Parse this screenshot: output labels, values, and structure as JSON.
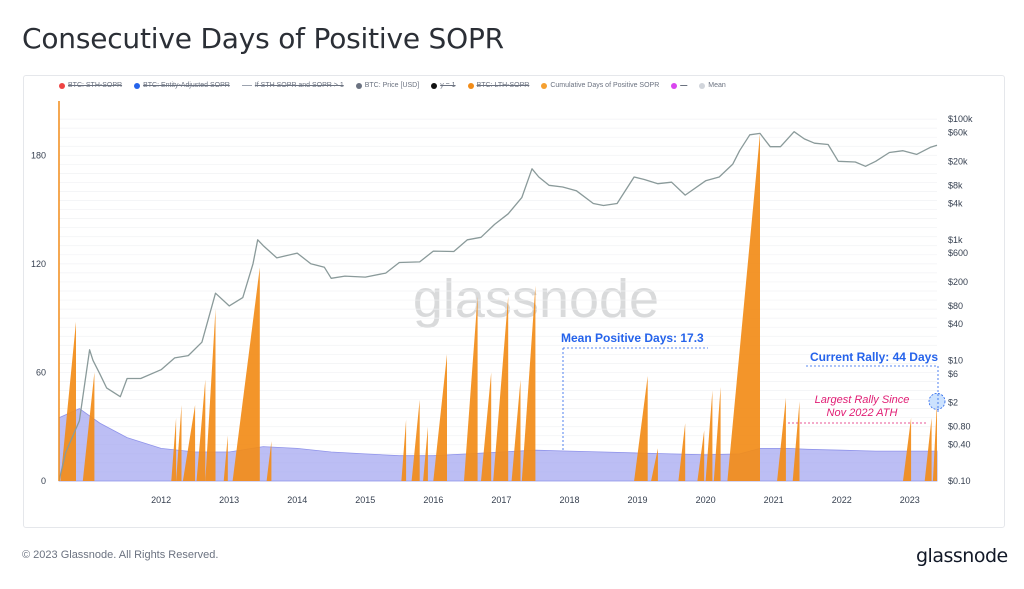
{
  "page": {
    "title": "Consecutive Days of Positive SOPR",
    "copyright": "© 2023 Glassnode. All Rights Reserved.",
    "logo": "glassnode",
    "watermark": "glassnode"
  },
  "legend": [
    {
      "label": "BTC: STH-SOPR",
      "color": "#ef4444",
      "active": false,
      "kind": "dot"
    },
    {
      "label": "BTC: Entity-Adjusted SOPR",
      "color": "#2563eb",
      "active": false,
      "kind": "dot"
    },
    {
      "label": "If STH SOPR and SOPR > 1",
      "color": "#9ca3af",
      "active": false,
      "kind": "line"
    },
    {
      "label": "BTC: Price [USD]",
      "color": "#6b7280",
      "active": true,
      "kind": "dot"
    },
    {
      "label": "y = 1",
      "color": "#111111",
      "active": false,
      "kind": "dot"
    },
    {
      "label": "BTC: LTH-SOPR",
      "color": "#f28c18",
      "active": false,
      "kind": "dot"
    },
    {
      "label": "Cumulative Days of Positive SOPR",
      "color": "#f5a030",
      "active": true,
      "kind": "dot"
    },
    {
      "label": "—",
      "color": "#d946ef",
      "active": false,
      "kind": "dot"
    },
    {
      "label": "Mean",
      "color": "#d1d5db",
      "active": true,
      "kind": "dot"
    }
  ],
  "annotations": {
    "mean": "Mean Positive Days: 17.3",
    "current": "Current Rally: 44 Days",
    "largest_line1": "Largest Rally Since",
    "largest_line2": "Nov 2022 ATH"
  },
  "colors": {
    "orange": "#f28c18",
    "mean_fill": "#a5a8f0",
    "price": "#8a9a9a",
    "annotation_blue": "#2563eb",
    "annotation_pink": "#e11d74"
  },
  "chart_data": {
    "type": "area",
    "title": "Consecutive Days of Positive SOPR",
    "x_range": [
      2011.0,
      2023.9
    ],
    "x_ticks": [
      "2012",
      "2013",
      "2014",
      "2015",
      "2016",
      "2017",
      "2018",
      "2019",
      "2020",
      "2021",
      "2022",
      "2023"
    ],
    "y_left": {
      "range": [
        0,
        210
      ],
      "ticks": [
        "0",
        "60",
        "120",
        "180"
      ]
    },
    "y_right": {
      "scale": "log",
      "range": [
        0.1,
        200000
      ],
      "ticks": [
        {
          "value": 100000,
          "label": "$100k"
        },
        {
          "value": 60000,
          "label": "$60k"
        },
        {
          "value": 20000,
          "label": "$20k"
        },
        {
          "value": 8000,
          "label": "$8k"
        },
        {
          "value": 4000,
          "label": "$4k"
        },
        {
          "value": 1000,
          "label": "$1k"
        },
        {
          "value": 600,
          "label": "$600"
        },
        {
          "value": 200,
          "label": "$200"
        },
        {
          "value": 80,
          "label": "$80"
        },
        {
          "value": 40,
          "label": "$40"
        },
        {
          "value": 10,
          "label": "$10"
        },
        {
          "value": 6,
          "label": "$6"
        },
        {
          "value": 2,
          "label": "$2"
        },
        {
          "value": 0.8,
          "label": "$0.80"
        },
        {
          "value": 0.4,
          "label": "$0.40"
        },
        {
          "value": 0.1,
          "label": "$0.10"
        }
      ]
    },
    "series": [
      {
        "name": "Cumulative Days of Positive SOPR",
        "kind": "spikes",
        "runs": [
          [
            2011.02,
            2011.25,
            88
          ],
          [
            2011.35,
            2011.52,
            60
          ],
          [
            2012.65,
            2012.72,
            35
          ],
          [
            2012.72,
            2012.8,
            42
          ],
          [
            2012.82,
            2013.0,
            42
          ],
          [
            2013.02,
            2013.15,
            56
          ],
          [
            2013.15,
            2013.3,
            95
          ],
          [
            2013.42,
            2013.48,
            25
          ],
          [
            2013.55,
            2013.95,
            118
          ],
          [
            2014.05,
            2014.12,
            22
          ],
          [
            2016.03,
            2016.1,
            34
          ],
          [
            2016.18,
            2016.3,
            45
          ],
          [
            2016.35,
            2016.42,
            30
          ],
          [
            2016.5,
            2016.7,
            70
          ],
          [
            2016.95,
            2017.15,
            102
          ],
          [
            2017.2,
            2017.35,
            60
          ],
          [
            2017.38,
            2017.6,
            102
          ],
          [
            2017.65,
            2017.78,
            56
          ],
          [
            2017.8,
            2018.0,
            108
          ],
          [
            2019.45,
            2019.65,
            58
          ],
          [
            2019.7,
            2019.8,
            18
          ],
          [
            2020.1,
            2020.2,
            32
          ],
          [
            2020.38,
            2020.48,
            28
          ],
          [
            2020.5,
            2020.6,
            50
          ],
          [
            2020.62,
            2020.72,
            52
          ],
          [
            2020.82,
            2021.3,
            192
          ],
          [
            2021.55,
            2021.68,
            46
          ],
          [
            2021.78,
            2021.88,
            44
          ],
          [
            2023.4,
            2023.52,
            35
          ],
          [
            2023.72,
            2023.82,
            35
          ],
          [
            2023.84,
            2023.9,
            44
          ]
        ]
      },
      {
        "name": "Mean",
        "points": [
          [
            2011.0,
            35
          ],
          [
            2011.3,
            40
          ],
          [
            2011.6,
            32
          ],
          [
            2012.0,
            24
          ],
          [
            2012.5,
            18
          ],
          [
            2013.0,
            16
          ],
          [
            2013.5,
            16
          ],
          [
            2014.0,
            19
          ],
          [
            2014.5,
            18
          ],
          [
            2015.0,
            16
          ],
          [
            2015.5,
            15
          ],
          [
            2016.0,
            14
          ],
          [
            2016.5,
            14
          ],
          [
            2017.0,
            15
          ],
          [
            2017.5,
            16
          ],
          [
            2018.0,
            17
          ],
          [
            2018.5,
            16.5
          ],
          [
            2019.0,
            16
          ],
          [
            2019.5,
            15.5
          ],
          [
            2020.0,
            15
          ],
          [
            2020.5,
            14.5
          ],
          [
            2021.0,
            15
          ],
          [
            2021.3,
            18
          ],
          [
            2021.7,
            18
          ],
          [
            2022.0,
            17.5
          ],
          [
            2022.5,
            17
          ],
          [
            2023.0,
            16.5
          ],
          [
            2023.5,
            16.5
          ],
          [
            2023.9,
            16.5
          ]
        ]
      },
      {
        "name": "BTC: Price [USD]",
        "points": [
          [
            2010.95,
            0.1
          ],
          [
            2011.1,
            0.3
          ],
          [
            2011.3,
            1.0
          ],
          [
            2011.45,
            15
          ],
          [
            2011.5,
            10
          ],
          [
            2011.6,
            6
          ],
          [
            2011.7,
            3.5
          ],
          [
            2011.9,
            2.5
          ],
          [
            2012.0,
            5
          ],
          [
            2012.2,
            5
          ],
          [
            2012.5,
            7
          ],
          [
            2012.7,
            11
          ],
          [
            2012.9,
            12
          ],
          [
            2013.1,
            20
          ],
          [
            2013.3,
            130
          ],
          [
            2013.5,
            80
          ],
          [
            2013.7,
            110
          ],
          [
            2013.85,
            400
          ],
          [
            2013.92,
            1000
          ],
          [
            2014.0,
            800
          ],
          [
            2014.2,
            500
          ],
          [
            2014.5,
            600
          ],
          [
            2014.7,
            400
          ],
          [
            2014.9,
            350
          ],
          [
            2015.0,
            230
          ],
          [
            2015.2,
            250
          ],
          [
            2015.5,
            240
          ],
          [
            2015.8,
            280
          ],
          [
            2016.0,
            420
          ],
          [
            2016.3,
            430
          ],
          [
            2016.5,
            650
          ],
          [
            2016.8,
            640
          ],
          [
            2017.0,
            1000
          ],
          [
            2017.2,
            1100
          ],
          [
            2017.4,
            1800
          ],
          [
            2017.6,
            2700
          ],
          [
            2017.8,
            5000
          ],
          [
            2017.95,
            15000
          ],
          [
            2018.05,
            11000
          ],
          [
            2018.2,
            8000
          ],
          [
            2018.4,
            7500
          ],
          [
            2018.6,
            6500
          ],
          [
            2018.85,
            4000
          ],
          [
            2019.0,
            3700
          ],
          [
            2019.2,
            4000
          ],
          [
            2019.45,
            11000
          ],
          [
            2019.6,
            10000
          ],
          [
            2019.8,
            8500
          ],
          [
            2020.0,
            9000
          ],
          [
            2020.2,
            5500
          ],
          [
            2020.5,
            9500
          ],
          [
            2020.7,
            11000
          ],
          [
            2020.9,
            18000
          ],
          [
            2021.0,
            30000
          ],
          [
            2021.15,
            55000
          ],
          [
            2021.3,
            58000
          ],
          [
            2021.45,
            35000
          ],
          [
            2021.6,
            35000
          ],
          [
            2021.8,
            62000
          ],
          [
            2021.95,
            47000
          ],
          [
            2022.1,
            40000
          ],
          [
            2022.3,
            38000
          ],
          [
            2022.45,
            20000
          ],
          [
            2022.7,
            19500
          ],
          [
            2022.85,
            16500
          ],
          [
            2023.0,
            20000
          ],
          [
            2023.2,
            28000
          ],
          [
            2023.4,
            30000
          ],
          [
            2023.6,
            26000
          ],
          [
            2023.8,
            34000
          ],
          [
            2023.9,
            37000
          ]
        ]
      }
    ],
    "current_rally_marker": {
      "x": 2023.9,
      "y": 44
    }
  }
}
